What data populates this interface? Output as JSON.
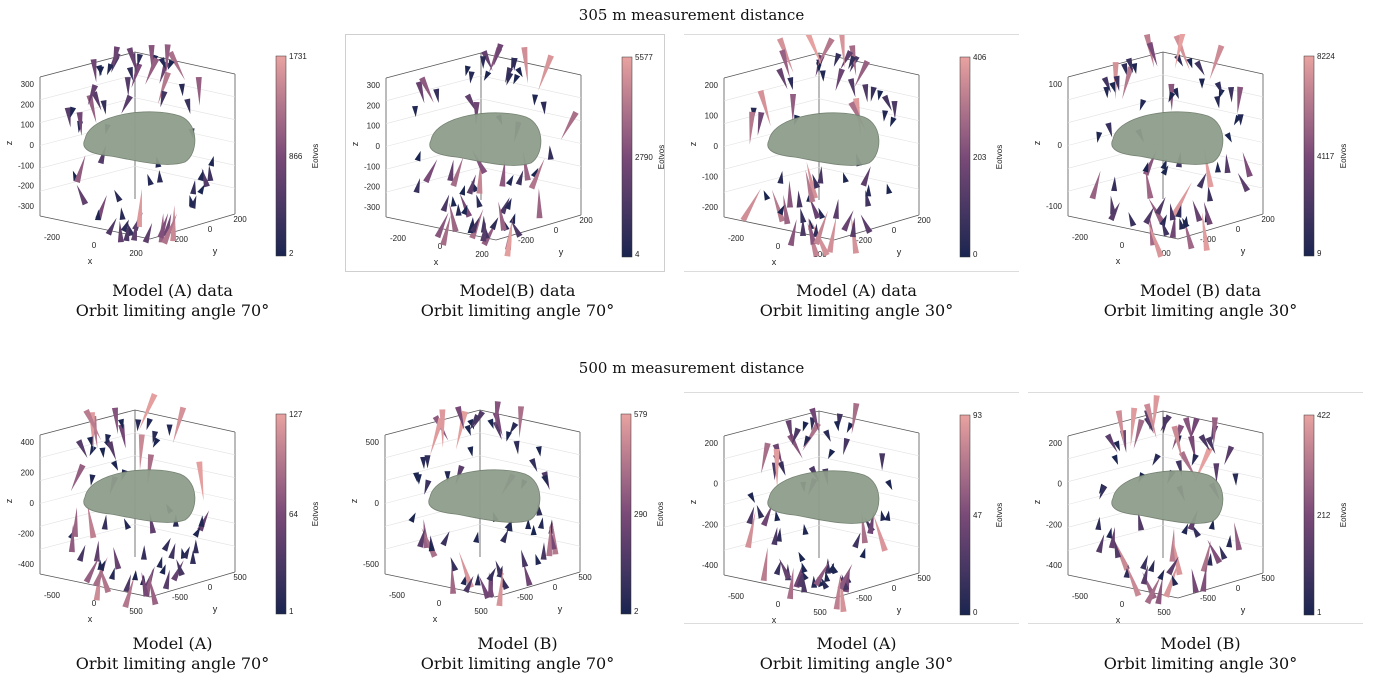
{
  "rows": [
    {
      "title": "305 m measurement distance",
      "panels": [
        {
          "caption1": "Model (A) data",
          "caption2": "Orbit limiting angle 70°",
          "cb_max": "1731",
          "cb_mid": "866",
          "cb_min": "2",
          "cb_label": "Eotvos",
          "z_ticks": [
            "300",
            "200",
            "100",
            "0",
            "-100",
            "-200",
            "-300"
          ],
          "x_ticks": [
            "-200",
            "0",
            "200"
          ],
          "y_ticks": [
            "-200",
            "0",
            "200"
          ],
          "xlabel": "x",
          "ylabel": "y",
          "zlabel": "z"
        },
        {
          "caption1": "Model(B) data",
          "caption2": "Orbit limiting angle 70°",
          "cb_max": "5577",
          "cb_mid": "2790",
          "cb_min": "4",
          "cb_label": "Eotvos",
          "z_ticks": [
            "300",
            "200",
            "100",
            "0",
            "-100",
            "-200",
            "-300"
          ],
          "x_ticks": [
            "-200",
            "0",
            "200"
          ],
          "y_ticks": [
            "-200",
            "0",
            "200"
          ],
          "xlabel": "x",
          "ylabel": "y",
          "zlabel": "z"
        },
        {
          "caption1": "Model (A) data",
          "caption2": "Orbit limiting angle 30°",
          "cb_max": "406",
          "cb_mid": "203",
          "cb_min": "0",
          "cb_label": "Eotvos",
          "z_ticks": [
            "200",
            "100",
            "0",
            "-100",
            "-200"
          ],
          "x_ticks": [
            "-200",
            "0",
            "200"
          ],
          "y_ticks": [
            "-200",
            "0",
            "200"
          ],
          "xlabel": "x",
          "ylabel": "y",
          "zlabel": "z"
        },
        {
          "caption1": "Model (B) data",
          "caption2": "Orbit limiting angle 30°",
          "cb_max": "8224",
          "cb_mid": "4117",
          "cb_min": "9",
          "cb_label": "Eotvos",
          "z_ticks": [
            "100",
            "0",
            "-100"
          ],
          "x_ticks": [
            "-200",
            "0",
            "200"
          ],
          "y_ticks": [
            "-200",
            "0",
            "200"
          ],
          "xlabel": "x",
          "ylabel": "y",
          "zlabel": "z"
        }
      ]
    },
    {
      "title": "500 m measurement distance",
      "panels": [
        {
          "caption1": "Model (A)",
          "caption2": "Orbit limiting angle 70°",
          "cb_max": "127",
          "cb_mid": "64",
          "cb_min": "1",
          "cb_label": "Eotvos",
          "z_ticks": [
            "400",
            "200",
            "0",
            "-200",
            "-400"
          ],
          "x_ticks": [
            "-500",
            "0",
            "500"
          ],
          "y_ticks": [
            "-500",
            "0",
            "500"
          ],
          "xlabel": "x",
          "ylabel": "y",
          "zlabel": "z"
        },
        {
          "caption1": "Model (B)",
          "caption2": "Orbit limiting angle 70°",
          "cb_max": "579",
          "cb_mid": "290",
          "cb_min": "2",
          "cb_label": "Eotvos",
          "z_ticks": [
            "500",
            "0",
            "-500"
          ],
          "x_ticks": [
            "-500",
            "0",
            "500"
          ],
          "y_ticks": [
            "-500",
            "0",
            "500"
          ],
          "xlabel": "x",
          "ylabel": "y",
          "zlabel": "z"
        },
        {
          "caption1": "Model (A)",
          "caption2": "Orbit limiting angle 30°",
          "cb_max": "93",
          "cb_mid": "47",
          "cb_min": "0",
          "cb_label": "Eotvos",
          "z_ticks": [
            "200",
            "0",
            "-200",
            "-400"
          ],
          "x_ticks": [
            "-500",
            "0",
            "500"
          ],
          "y_ticks": [
            "-500",
            "0",
            "500"
          ],
          "xlabel": "x",
          "ylabel": "y",
          "zlabel": "z"
        },
        {
          "caption1": "Model (B)",
          "caption2": "Orbit limiting angle 30°",
          "cb_max": "422",
          "cb_mid": "212",
          "cb_min": "1",
          "cb_label": "Eotvos",
          "z_ticks": [
            "200",
            "0",
            "-200",
            "-400"
          ],
          "x_ticks": [
            "-500",
            "0",
            "500"
          ],
          "y_ticks": [
            "-500",
            "0",
            "500"
          ],
          "xlabel": "x",
          "ylabel": "y",
          "zlabel": "z"
        }
      ]
    }
  ],
  "colors": {
    "colormap_high": "#e8a2a0",
    "colormap_mid": "#7a4a78",
    "colormap_low": "#1a2550",
    "asteroid": "#8f9e8c",
    "asteroid_dark": "#6f7d6c"
  }
}
